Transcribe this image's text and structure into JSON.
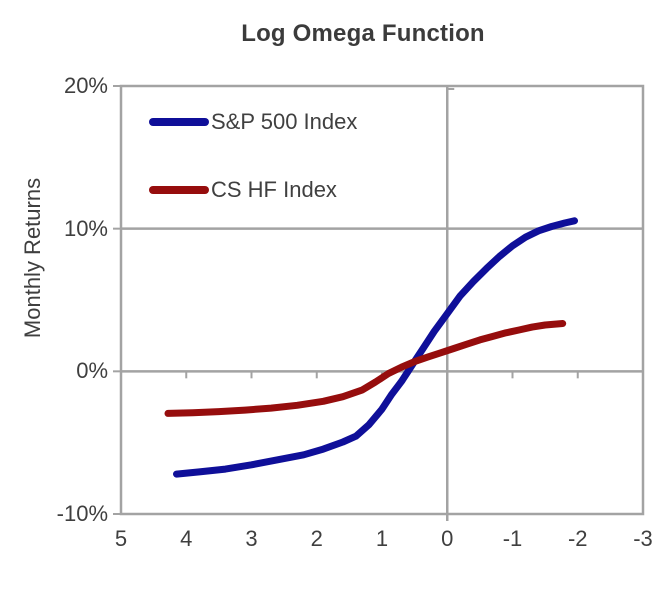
{
  "title": "Log Omega Function",
  "y_axis": {
    "label": "Monthly Returns",
    "tick_labels": [
      "20%",
      "10%",
      "0%",
      "-10%"
    ],
    "tick_values": [
      20,
      10,
      0,
      -10
    ]
  },
  "x_axis": {
    "tick_labels": [
      "5",
      "4",
      "3",
      "2",
      "1",
      "0",
      "-1",
      "-2",
      "-3"
    ],
    "tick_values": [
      5,
      4,
      3,
      2,
      1,
      0,
      -1,
      -2,
      -3
    ]
  },
  "legend": {
    "items": [
      {
        "label": "S&P 500 Index",
        "color": "#0f0f99"
      },
      {
        "label": "CS HF Index",
        "color": "#960d0d"
      }
    ]
  },
  "colors": {
    "background": "#ffffff",
    "axis_gray": "#a3a3a3",
    "text": "#3f3f3f",
    "sp500_blue": "#0f0f99",
    "cshf_red": "#960d0d"
  },
  "chart_data": {
    "type": "line",
    "title": "Log Omega Function",
    "xlabel": "",
    "ylabel": "Monthly Returns",
    "x_axis_reversed": true,
    "xlim": [
      5,
      -3
    ],
    "ylim_percent": [
      -10,
      20
    ],
    "grid": {
      "horizontal_percent": [
        10,
        0
      ],
      "vertical_at_x": [
        0
      ]
    },
    "legend_position": "top-left-inside",
    "series": [
      {
        "name": "S&P 500 Index",
        "color": "#0f0f99",
        "x": [
          4.15,
          3.8,
          3.4,
          3.0,
          2.6,
          2.2,
          1.9,
          1.6,
          1.4,
          1.2,
          1.0,
          0.85,
          0.7,
          0.6,
          0.5,
          0.35,
          0.2,
          0.0,
          -0.2,
          -0.4,
          -0.6,
          -0.8,
          -1.0,
          -1.2,
          -1.4,
          -1.6,
          -1.8,
          -1.95
        ],
        "y_percent": [
          -7.2,
          -7.05,
          -6.85,
          -6.55,
          -6.2,
          -5.85,
          -5.45,
          -4.95,
          -4.55,
          -3.75,
          -2.65,
          -1.6,
          -0.7,
          0.0,
          0.7,
          1.75,
          2.8,
          4.05,
          5.3,
          6.3,
          7.2,
          8.05,
          8.8,
          9.4,
          9.85,
          10.15,
          10.4,
          10.55
        ]
      },
      {
        "name": "CS HF Index",
        "color": "#960d0d",
        "x": [
          4.28,
          3.9,
          3.5,
          3.1,
          2.7,
          2.3,
          1.9,
          1.6,
          1.3,
          1.1,
          0.9,
          0.7,
          0.5,
          0.3,
          0.1,
          -0.1,
          -0.3,
          -0.5,
          -0.7,
          -0.9,
          -1.1,
          -1.3,
          -1.5,
          -1.77
        ],
        "y_percent": [
          -2.95,
          -2.9,
          -2.82,
          -2.72,
          -2.58,
          -2.38,
          -2.1,
          -1.78,
          -1.3,
          -0.75,
          -0.15,
          0.3,
          0.68,
          1.0,
          1.3,
          1.6,
          1.9,
          2.2,
          2.45,
          2.7,
          2.9,
          3.1,
          3.25,
          3.35
        ]
      }
    ]
  }
}
